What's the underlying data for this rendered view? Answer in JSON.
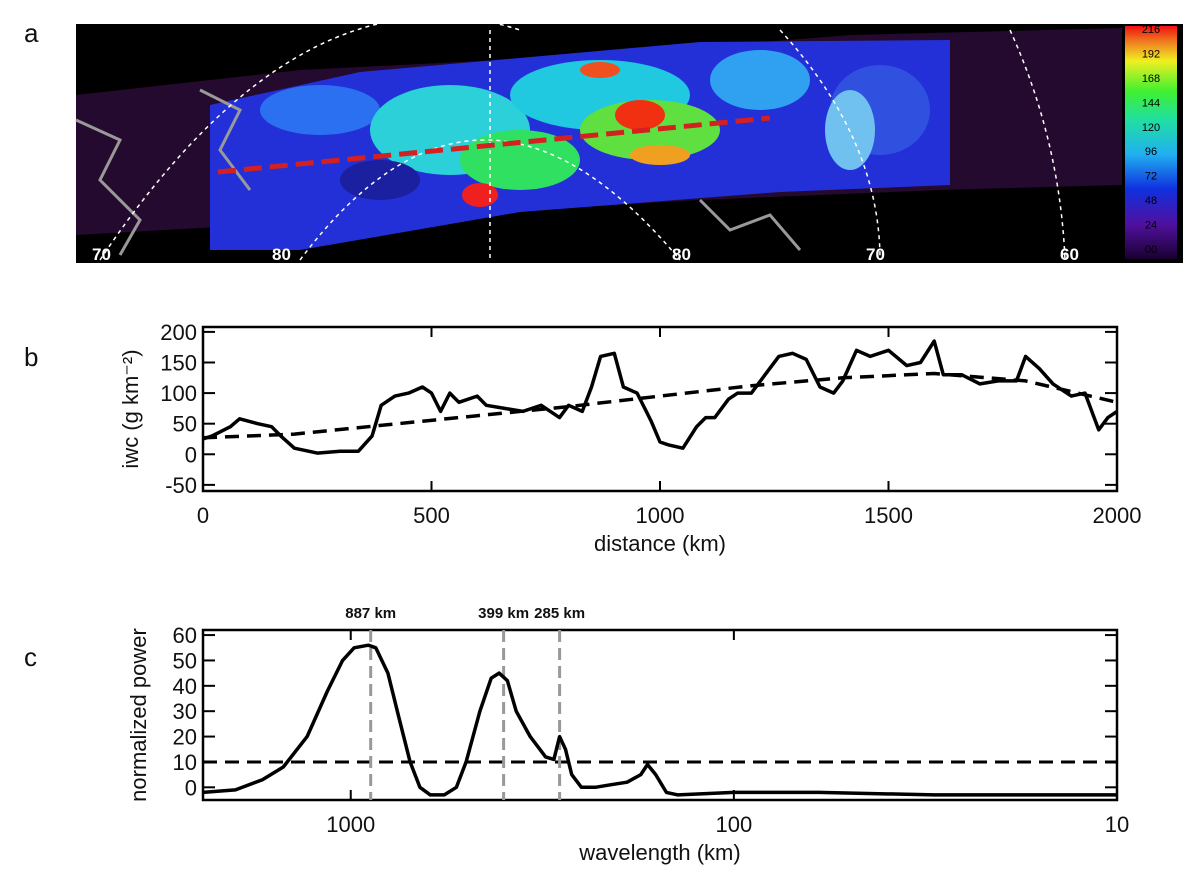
{
  "panel_labels": [
    "a",
    "b",
    "c"
  ],
  "map": {
    "lat_labels": [
      "70",
      "80",
      "80",
      "70",
      "60"
    ],
    "colorbar_labels": [
      "00",
      "24",
      "48",
      "72",
      "96",
      "120",
      "144",
      "168",
      "192",
      "216"
    ]
  },
  "chart_data": [
    {
      "type": "line",
      "xlabel": "distance (km)",
      "ylabel": "iwc (g km⁻²)",
      "xlim": [
        0,
        2000
      ],
      "ylim": [
        -60,
        208
      ],
      "xticks": [
        0,
        500,
        1000,
        1500,
        2000
      ],
      "yticks": [
        -50,
        0,
        50,
        100,
        150,
        200
      ],
      "series": [
        {
          "color": "#000000",
          "style": "solid",
          "x": [
            0,
            20,
            60,
            80,
            120,
            150,
            170,
            200,
            250,
            300,
            340,
            370,
            390,
            420,
            450,
            480,
            500,
            520,
            540,
            560,
            600,
            620,
            660,
            700,
            740,
            780,
            800,
            830,
            850,
            870,
            900,
            920,
            950,
            980,
            1000,
            1020,
            1050,
            1080,
            1100,
            1120,
            1150,
            1170,
            1200,
            1230,
            1260,
            1290,
            1320,
            1350,
            1380,
            1400,
            1430,
            1460,
            1500,
            1540,
            1570,
            1600,
            1620,
            1660,
            1700,
            1740,
            1780,
            1800,
            1830,
            1860,
            1900,
            1930,
            1960,
            1980,
            2000
          ],
          "values": [
            25,
            30,
            45,
            58,
            50,
            45,
            30,
            10,
            2,
            5,
            5,
            30,
            80,
            95,
            100,
            110,
            100,
            70,
            100,
            85,
            95,
            80,
            75,
            70,
            80,
            60,
            80,
            70,
            110,
            160,
            165,
            110,
            100,
            55,
            20,
            15,
            10,
            45,
            60,
            60,
            90,
            100,
            100,
            130,
            160,
            165,
            155,
            110,
            100,
            120,
            170,
            160,
            170,
            145,
            150,
            185,
            130,
            130,
            115,
            120,
            120,
            160,
            140,
            115,
            95,
            100,
            40,
            60,
            70
          ]
        },
        {
          "color": "#000000",
          "style": "dashed",
          "x": [
            0,
            200,
            400,
            600,
            800,
            1000,
            1200,
            1400,
            1600,
            1800,
            2000
          ],
          "values": [
            27,
            33,
            48,
            63,
            78,
            95,
            112,
            125,
            132,
            120,
            85
          ]
        }
      ]
    },
    {
      "type": "line",
      "xlabel": "wavelength (km)",
      "ylabel": "normalized power",
      "xlog": true,
      "xlim": [
        2430,
        10
      ],
      "ylim": [
        -5,
        62
      ],
      "xticks": [
        1000,
        100,
        10
      ],
      "yticks": [
        0,
        10,
        20,
        30,
        40,
        50,
        60
      ],
      "threshold": 10,
      "annotations": [
        {
          "x": 887,
          "label": "887 km"
        },
        {
          "x": 399,
          "label": "399 km"
        },
        {
          "x": 285,
          "label": "285 km"
        }
      ],
      "annotation_color": "#999999",
      "series": [
        {
          "color": "#000000",
          "style": "solid",
          "x": [
            2430,
            2000,
            1700,
            1500,
            1300,
            1150,
            1050,
            980,
            900,
            860,
            800,
            750,
            700,
            660,
            620,
            570,
            530,
            500,
            460,
            430,
            410,
            390,
            370,
            340,
            310,
            295,
            285,
            275,
            265,
            250,
            230,
            210,
            190,
            175,
            168,
            160,
            150,
            140,
            100,
            60,
            30,
            10
          ],
          "values": [
            -2,
            -1,
            3,
            8,
            20,
            38,
            50,
            55,
            56,
            55,
            45,
            28,
            10,
            0,
            -3,
            -3,
            0,
            10,
            30,
            43,
            45,
            42,
            30,
            20,
            12,
            11,
            20,
            15,
            5,
            0,
            0,
            1,
            2,
            5,
            9,
            5,
            -2,
            -3,
            -2,
            -2,
            -3,
            -3
          ]
        }
      ]
    }
  ]
}
